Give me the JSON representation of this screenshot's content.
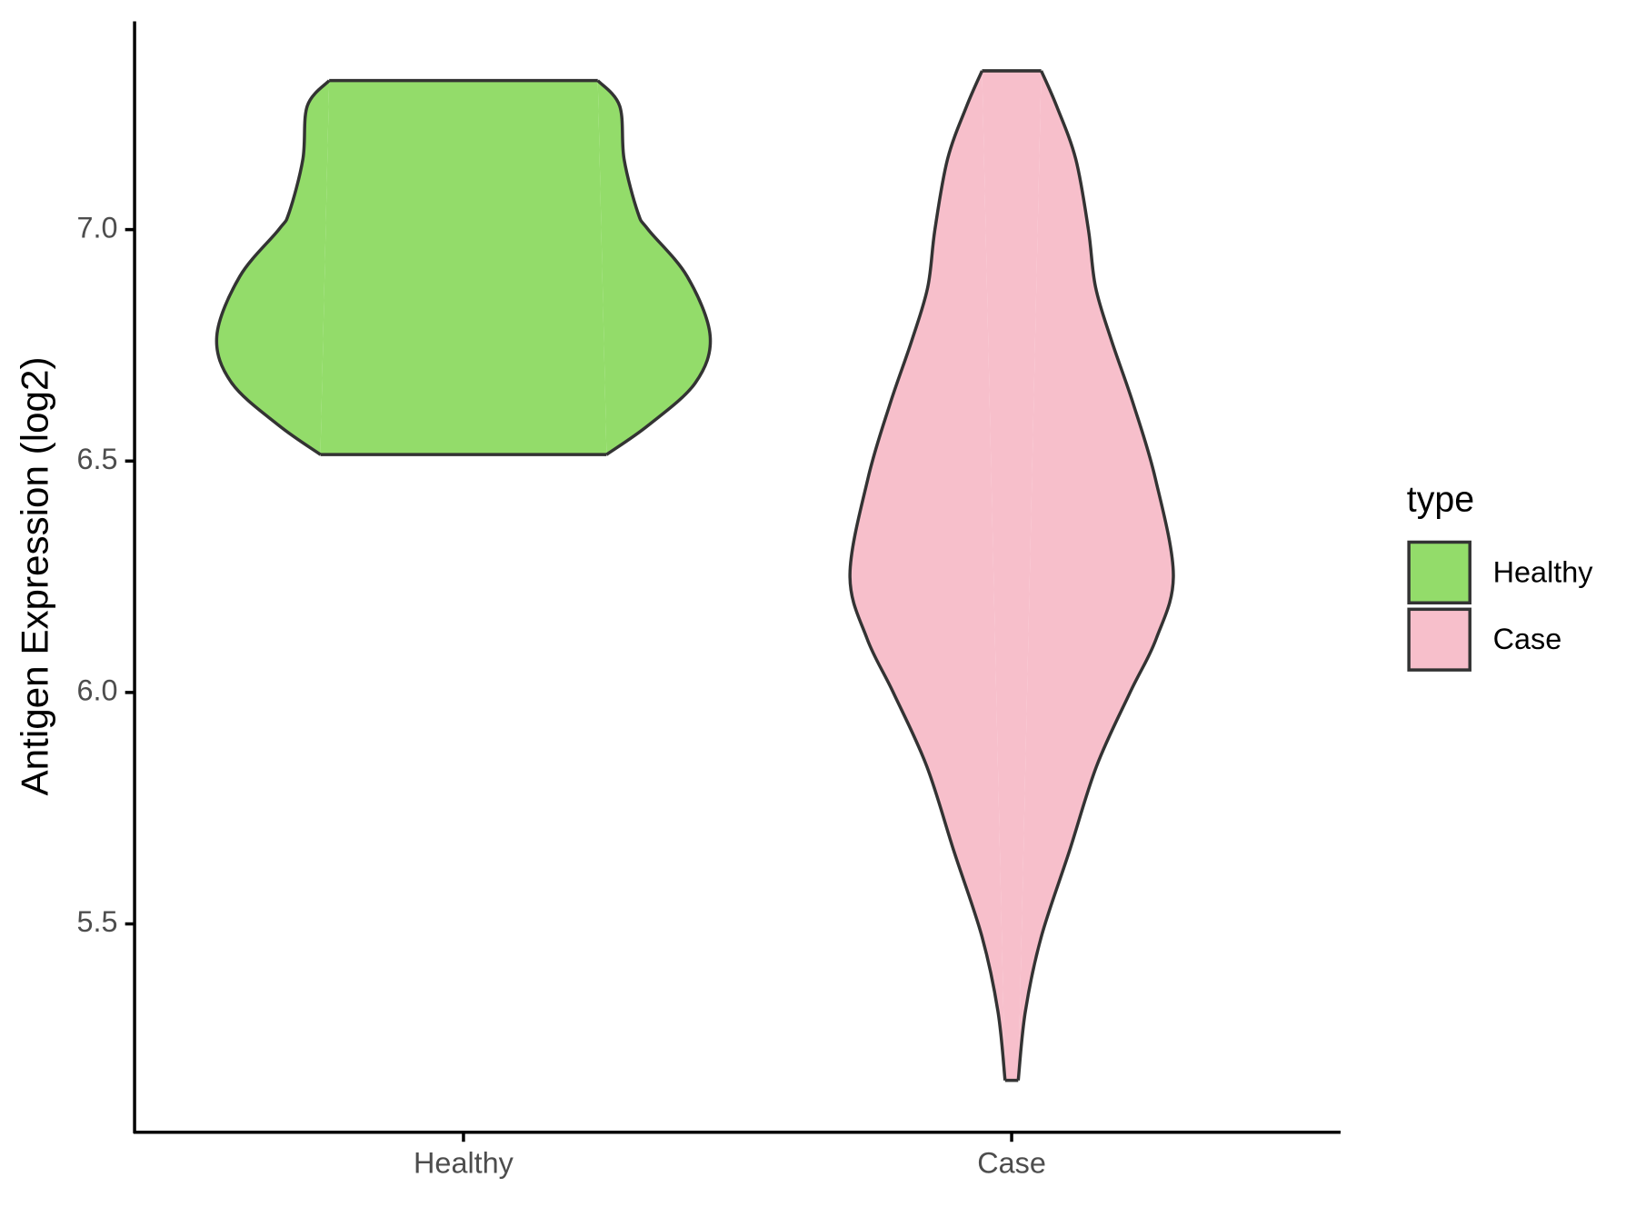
{
  "chart_data": {
    "type": "violin",
    "ylabel": "Antigen Expression (log2)",
    "categories": [
      "Healthy",
      "Case"
    ],
    "ylim": [
      5.05,
      7.45
    ],
    "yticks": [
      5.5,
      {
        "value": 6,
        "label": "6.0"
      },
      6.5,
      {
        "value": 7,
        "label": "7.0"
      }
    ],
    "legend_title": "type",
    "legend_position": "right",
    "series": [
      {
        "name": "Healthy",
        "color": "#93DC6A",
        "y": [
          7.322,
          7.267,
          7.152,
          7.037,
          7.0,
          6.899,
          6.77,
          6.669,
          6.577,
          6.514
        ],
        "width": [
          0.245,
          0.285,
          0.293,
          0.318,
          0.337,
          0.408,
          0.45,
          0.423,
          0.337,
          0.261
        ]
      },
      {
        "name": "Case",
        "color": "#F7BFCB",
        "y": [
          7.343,
          7.267,
          7.152,
          7.0,
          6.876,
          6.761,
          6.623,
          6.463,
          6.254,
          6.117,
          6.0,
          5.841,
          5.656,
          5.472,
          5.311,
          5.162
        ],
        "width": [
          0.054,
          0.082,
          0.117,
          0.14,
          0.153,
          0.182,
          0.222,
          0.262,
          0.295,
          0.264,
          0.216,
          0.155,
          0.105,
          0.054,
          0.025,
          0.012
        ]
      }
    ]
  }
}
